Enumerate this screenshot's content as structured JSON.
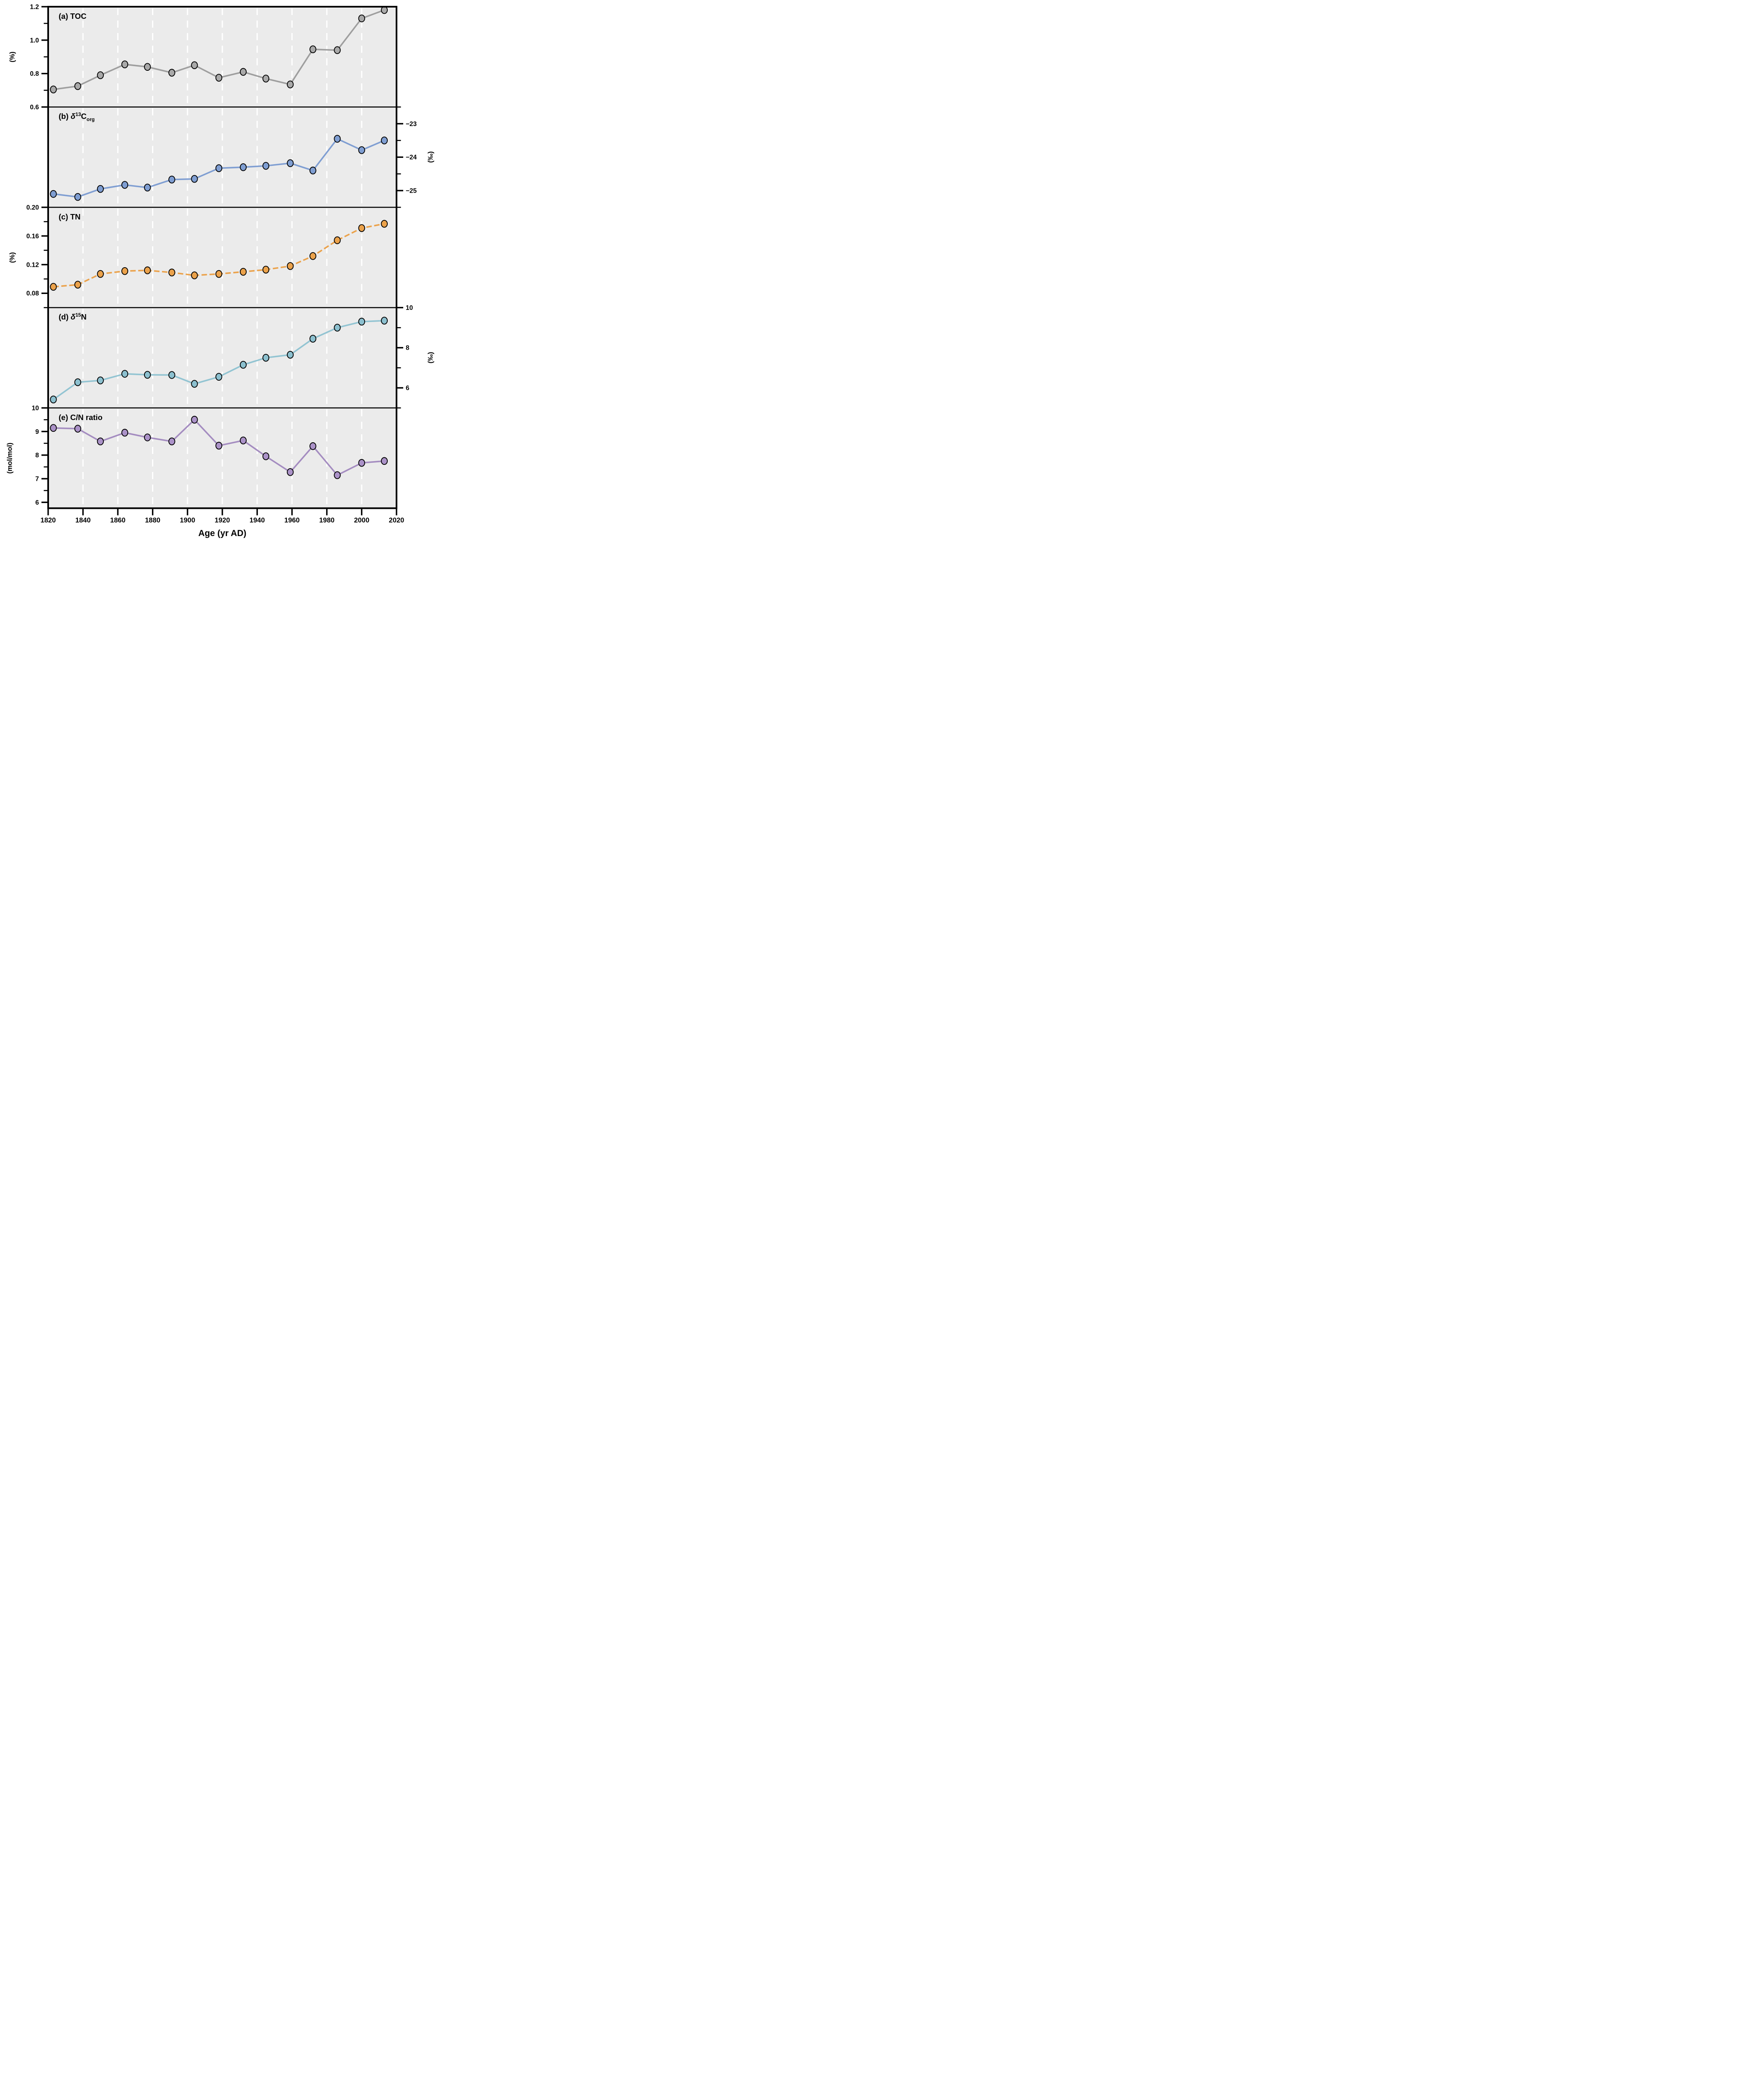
{
  "colors": {
    "panel_background": "#ebebeb",
    "gridline": "#ffffff",
    "axis": "#000000",
    "toc_marker": "#a9a9a9",
    "toc_line": "#9e9e9e",
    "d13c": "#7f9ed2",
    "tn": "#eba24b",
    "d15n_marker": "#8cc0cf",
    "d15n_line": "#92c4d2",
    "cn_marker": "#ab92c8",
    "cn_line": "#a48cc0"
  },
  "x_axis": {
    "title": "Age (yr AD)",
    "range": [
      1820,
      2020
    ],
    "ticks": [
      1820,
      1840,
      1860,
      1880,
      1900,
      1920,
      1940,
      1960,
      1980,
      2000,
      2020
    ],
    "tick_labels": [
      "1820",
      "1840",
      "1860",
      "1880",
      "1900",
      "1920",
      "1940",
      "1960",
      "1980",
      "2000",
      "2020"
    ],
    "gridline_years": [
      1840,
      1860,
      1880,
      1900,
      1920,
      1940,
      1960,
      1980,
      2000
    ]
  },
  "panel_titles": [
    {
      "prefix": "(a) TOC",
      "sym": "",
      "sup": "",
      "base": "",
      "sub": ""
    },
    {
      "prefix": "(b) ",
      "sym": "δ",
      "sup": "13",
      "base": "C",
      "sub": "org"
    },
    {
      "prefix": "(c) TN",
      "sym": "",
      "sup": "",
      "base": "",
      "sub": ""
    },
    {
      "prefix": "(d) ",
      "sym": "δ",
      "sup": "15",
      "base": "N",
      "sub": ""
    },
    {
      "prefix": "(e) C/N ratio",
      "sym": "",
      "sup": "",
      "base": "",
      "sub": ""
    }
  ],
  "chart_data": [
    {
      "type": "line",
      "panel": "a",
      "series_name": "TOC",
      "ylabel": "(%)",
      "axis_side": "left",
      "x": [
        1823,
        1837,
        1850,
        1864,
        1877,
        1891,
        1904,
        1918,
        1932,
        1945,
        1959,
        1972,
        1986,
        2000,
        2013
      ],
      "values": [
        0.705,
        0.725,
        0.79,
        0.855,
        0.84,
        0.805,
        0.85,
        0.775,
        0.81,
        0.77,
        0.735,
        0.945,
        0.94,
        1.13,
        1.18
      ],
      "ylim": [
        0.6,
        1.2
      ],
      "yticks": [
        1.2,
        1.0,
        0.8,
        0.6
      ],
      "ytick_labels": [
        "1.2",
        "1.0",
        "0.8",
        "0.6"
      ],
      "yticks_minor": [
        1.1,
        0.9,
        0.7
      ],
      "line_style": "solid",
      "marker_color": "#a9a9a9",
      "line_color": "#9e9e9e"
    },
    {
      "type": "line",
      "panel": "b",
      "series_name": "d13Corg",
      "ylabel": "(‰)",
      "axis_side": "right",
      "x": [
        1823,
        1837,
        1850,
        1864,
        1877,
        1891,
        1904,
        1918,
        1932,
        1945,
        1959,
        1972,
        1986,
        2000,
        2013
      ],
      "values": [
        -25.1,
        -25.19,
        -24.95,
        -24.83,
        -24.91,
        -24.67,
        -24.65,
        -24.33,
        -24.3,
        -24.26,
        -24.18,
        -24.4,
        -23.45,
        -23.79,
        -23.5
      ],
      "ylim": [
        -25.5,
        -22.5
      ],
      "yticks": [
        -23,
        -24,
        -25
      ],
      "ytick_labels": [
        "−23",
        "−24",
        "−25"
      ],
      "yticks_minor": [
        -22.5,
        -23.5,
        -24.5,
        -25.5
      ],
      "line_style": "solid",
      "marker_color": "#7f9ed2",
      "line_color": "#7f9ed2"
    },
    {
      "type": "line",
      "panel": "c",
      "series_name": "TN",
      "ylabel": "(%)",
      "axis_side": "left",
      "x": [
        1823,
        1837,
        1850,
        1864,
        1877,
        1891,
        1904,
        1918,
        1932,
        1945,
        1959,
        1972,
        1986,
        2000,
        2013
      ],
      "values": [
        0.089,
        0.092,
        0.107,
        0.111,
        0.112,
        0.109,
        0.105,
        0.107,
        0.11,
        0.113,
        0.118,
        0.132,
        0.154,
        0.171,
        0.177
      ],
      "ylim": [
        0.06,
        0.2
      ],
      "yticks": [
        0.2,
        0.16,
        0.12,
        0.08
      ],
      "ytick_labels": [
        "0.20",
        "0.16",
        "0.12",
        "0.08"
      ],
      "yticks_minor": [
        0.18,
        0.14,
        0.1,
        0.06
      ],
      "line_style": "dashed",
      "marker_color": "#eba24b",
      "line_color": "#eba24b"
    },
    {
      "type": "line",
      "panel": "d",
      "series_name": "d15N",
      "ylabel": "(‰)",
      "axis_side": "right",
      "x": [
        1823,
        1837,
        1850,
        1864,
        1877,
        1891,
        1904,
        1918,
        1932,
        1945,
        1959,
        1972,
        1986,
        2000,
        2013
      ],
      "values": [
        5.42,
        6.28,
        6.37,
        6.7,
        6.65,
        6.64,
        6.2,
        6.55,
        7.15,
        7.5,
        7.65,
        8.45,
        9.0,
        9.3,
        9.35
      ],
      "ylim": [
        5,
        10
      ],
      "yticks": [
        10,
        8,
        6
      ],
      "ytick_labels": [
        "10",
        "8",
        "6"
      ],
      "yticks_minor": [
        9,
        7,
        5
      ],
      "line_style": "solid",
      "marker_color": "#8cc0cf",
      "line_color": "#92c4d2"
    },
    {
      "type": "line",
      "panel": "e",
      "series_name": "CN_ratio",
      "ylabel": "(mol/mol)",
      "axis_side": "left",
      "x": [
        1823,
        1837,
        1850,
        1864,
        1877,
        1891,
        1904,
        1918,
        1932,
        1945,
        1959,
        1972,
        1986,
        2000,
        2013
      ],
      "values": [
        9.15,
        9.12,
        8.58,
        8.95,
        8.75,
        8.58,
        9.5,
        8.4,
        8.62,
        7.95,
        7.28,
        8.38,
        7.15,
        7.67,
        7.75
      ],
      "ylim": [
        5.75,
        10
      ],
      "yticks": [
        10,
        9,
        8,
        7,
        6
      ],
      "ytick_labels": [
        "10",
        "9",
        "8",
        "7",
        "6"
      ],
      "yticks_minor": [
        9.5,
        8.5,
        7.5,
        6.5
      ],
      "line_style": "solid",
      "marker_color": "#ab92c8",
      "line_color": "#a48cc0"
    }
  ]
}
